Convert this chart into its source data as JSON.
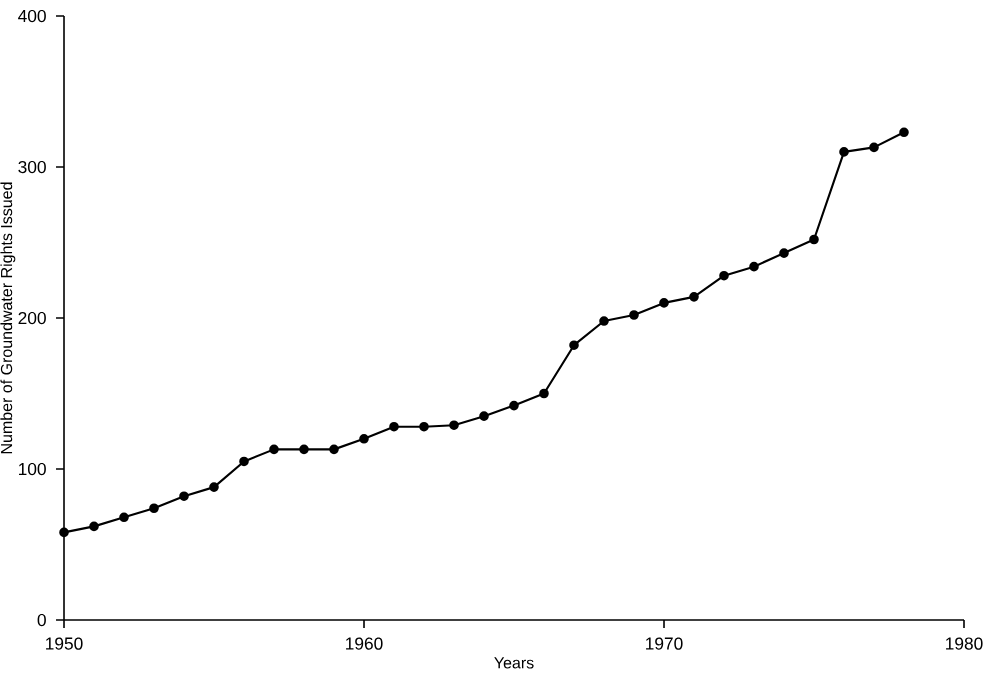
{
  "chart_data": {
    "type": "line",
    "xlabel": "Years",
    "ylabel": "Number of Groundwater Rights Issued",
    "x": [
      1950,
      1951,
      1952,
      1953,
      1954,
      1955,
      1956,
      1957,
      1958,
      1959,
      1960,
      1961,
      1962,
      1963,
      1964,
      1965,
      1966,
      1967,
      1968,
      1969,
      1970,
      1971,
      1972,
      1973,
      1974,
      1975,
      1976,
      1977,
      1978
    ],
    "series": [
      {
        "color": "#000000",
        "values": [
          58,
          62,
          68,
          74,
          82,
          88,
          105,
          113,
          113,
          113,
          120,
          128,
          128,
          129,
          135,
          142,
          150,
          182,
          198,
          202,
          210,
          214,
          228,
          234,
          243,
          252,
          310,
          313,
          323
        ]
      }
    ],
    "xlim": [
      1950,
      1980
    ],
    "xticks": [
      1950,
      1960,
      1970,
      1980
    ],
    "ylim": [
      0,
      400
    ],
    "yticks": [
      0,
      100,
      200,
      300,
      400
    ],
    "marker": "circle",
    "line_style": "solid"
  }
}
